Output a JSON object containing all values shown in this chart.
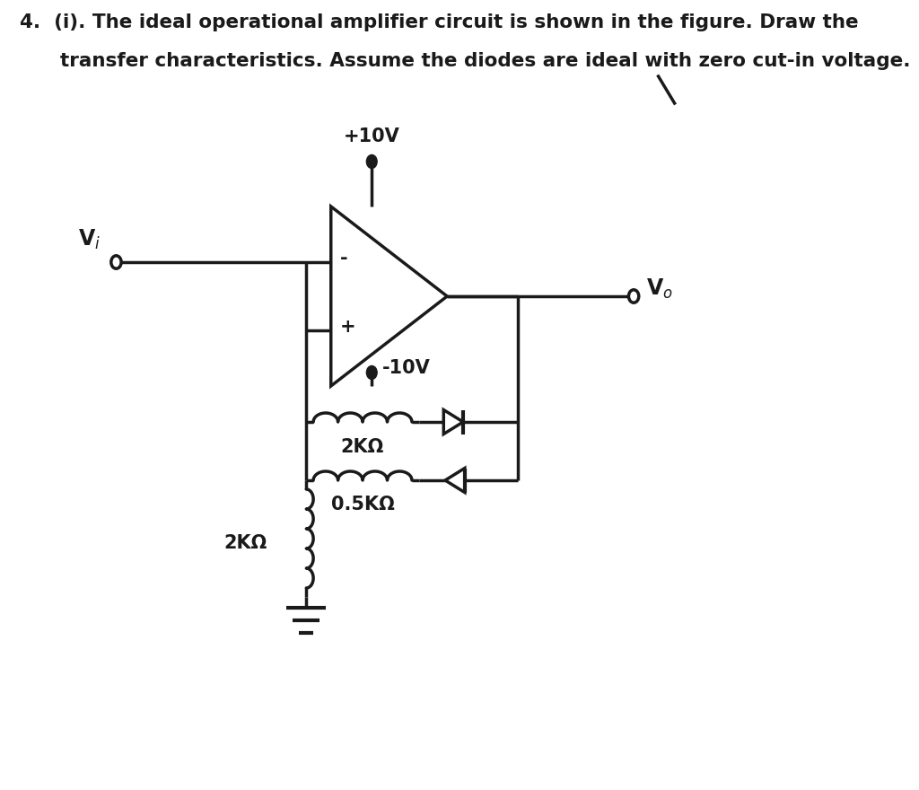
{
  "background_color": "#ffffff",
  "line_color": "#1a1a1a",
  "line_width": 2.5,
  "text_color": "#1a1a1a",
  "title_line1": "4.  (i). The ideal operational amplifier circuit is shown in the figure. Draw the",
  "title_line2": "      transfer characteristics. Assume the diodes are ideal with zero cut-in voltage.",
  "Vi_label": "V$_i$",
  "Vo_label": "V$_o$",
  "plus10V_label": "+10V",
  "minus10V_label": "-10V",
  "R1_label": "2KΩ",
  "R2_label": "0.5KΩ",
  "R3_label": "2KΩ",
  "plus_sign": "+",
  "minus_sign": "-",
  "title_fontsize": 15.5,
  "label_fontsize": 15,
  "Vi_fontsize": 17
}
